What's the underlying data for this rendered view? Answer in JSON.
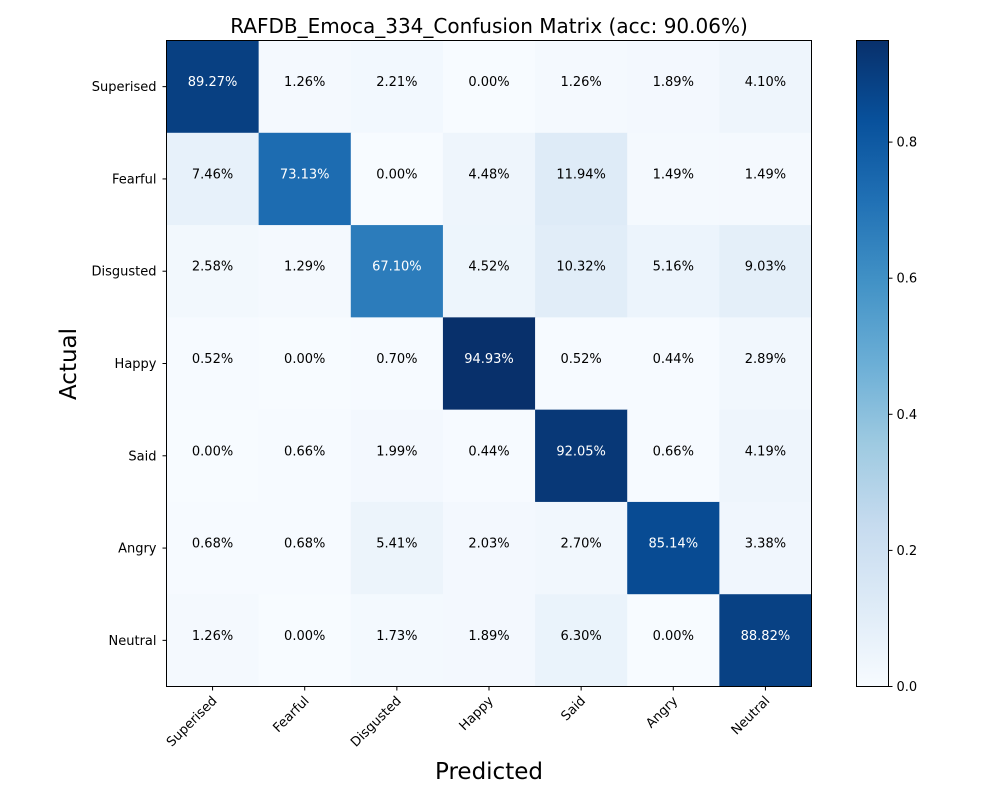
{
  "chart_data": {
    "type": "heatmap",
    "title": "RAFDB_Emoca_334_Confusion Matrix (acc: 90.06%)",
    "xlabel": "Predicted",
    "ylabel": "Actual",
    "x_categories": [
      "Superised",
      "Fearful",
      "Disgusted",
      "Happy",
      "Said",
      "Angry",
      "Neutral"
    ],
    "y_categories": [
      "Superised",
      "Fearful",
      "Disgusted",
      "Happy",
      "Said",
      "Angry",
      "Neutral"
    ],
    "values": [
      [
        89.27,
        1.26,
        2.21,
        0.0,
        1.26,
        1.89,
        4.1
      ],
      [
        7.46,
        73.13,
        0.0,
        4.48,
        11.94,
        1.49,
        1.49
      ],
      [
        2.58,
        1.29,
        67.1,
        4.52,
        10.32,
        5.16,
        9.03
      ],
      [
        0.52,
        0.0,
        0.7,
        94.93,
        0.52,
        0.44,
        2.89
      ],
      [
        0.0,
        0.66,
        1.99,
        0.44,
        92.05,
        0.66,
        4.19
      ],
      [
        0.68,
        0.68,
        5.41,
        2.03,
        2.7,
        85.14,
        3.38
      ],
      [
        1.26,
        0.0,
        1.73,
        1.89,
        6.3,
        0.0,
        88.82
      ]
    ],
    "value_unit": "%",
    "colormap": "Blues",
    "colorbar": {
      "range": [
        0.0,
        0.9493
      ],
      "ticks": [
        "0.0",
        "0.2",
        "0.4",
        "0.6",
        "0.8"
      ]
    },
    "grid": false
  }
}
